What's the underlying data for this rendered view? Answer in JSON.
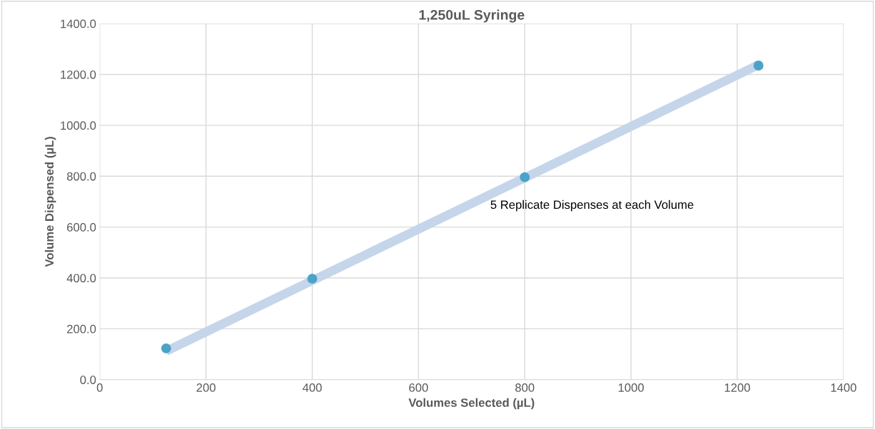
{
  "chart_data": {
    "type": "scatter",
    "title": "1,250uL Syringe",
    "xlabel": "Volumes Selected (µL)",
    "ylabel": "Volume Dispensed (µL)",
    "annotations": [
      "5 Replicate Dispenses at each Volume"
    ],
    "series": [
      {
        "type": "line",
        "marker": "none",
        "color": "#c5d5ea",
        "x": [
          125,
          1240
        ],
        "values": [
          112,
          1238
        ]
      },
      {
        "color": "#4ba3c8",
        "x": [
          125,
          400,
          800,
          1240
        ],
        "values": [
          123,
          397,
          796,
          1235
        ]
      }
    ],
    "xlim": [
      0,
      1400
    ],
    "xticks": [
      0,
      200,
      400,
      600,
      800,
      1000,
      1200,
      1400
    ],
    "ylim": [
      0,
      1400
    ],
    "yticks": [
      {
        "value": 0,
        "label": "0.0"
      },
      {
        "value": 200,
        "label": "200.0"
      },
      {
        "value": 400,
        "label": "400.0"
      },
      {
        "value": 600,
        "label": "600.0"
      },
      {
        "value": 800,
        "label": "800.0"
      },
      {
        "value": 1000,
        "label": "1000.0"
      },
      {
        "value": 1200,
        "label": "1200.0"
      },
      {
        "value": 1400,
        "label": "1400.0"
      }
    ],
    "grid": true,
    "marker": "circle"
  }
}
